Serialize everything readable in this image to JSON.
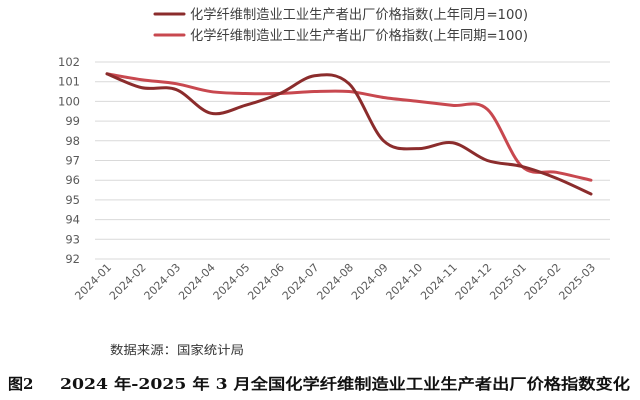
{
  "chart_data": {
    "type": "line",
    "categories": [
      "2024-01",
      "2024-02",
      "2024-03",
      "2024-04",
      "2024-05",
      "2024-06",
      "2024-07",
      "2024-08",
      "2024-09",
      "2024-10",
      "2024-11",
      "2024-12",
      "2025-01",
      "2025-02",
      "2025-03"
    ],
    "series": [
      {
        "name": "化学纤维制造业工业生产者出厂价格指数(上年同月=100)",
        "color": "#8B2C2C",
        "values": [
          101.4,
          100.7,
          100.6,
          99.4,
          99.8,
          100.4,
          101.3,
          100.9,
          98.0,
          97.6,
          97.9,
          97.0,
          96.7,
          96.1,
          95.3
        ]
      },
      {
        "name": "化学纤维制造业工业生产者出厂价格指数(上年同期=100)",
        "color": "#C8484F",
        "values": [
          101.4,
          101.1,
          100.9,
          100.5,
          100.4,
          100.4,
          100.5,
          100.5,
          100.2,
          100.0,
          99.8,
          99.6,
          96.7,
          96.4,
          96.0
        ]
      }
    ],
    "ylim": [
      92,
      102
    ],
    "y_ticks": [
      92,
      93,
      94,
      95,
      96,
      97,
      98,
      99,
      100,
      101,
      102
    ],
    "grid": true,
    "smooth": true,
    "legend": "top"
  },
  "source": "数据来源：国家统计局",
  "caption": {
    "label": "图2",
    "text": "2024 年-2025 年 3 月全国化学纤维制造业工业生产者出厂价格指数变化"
  }
}
